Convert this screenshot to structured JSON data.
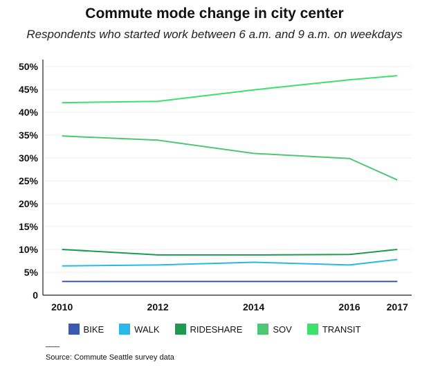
{
  "chart_data": {
    "type": "line",
    "title": "Commute mode change in city center",
    "subtitle": "Respondents who started work between 6 a.m. and 9 a.m. on weekdays",
    "x": [
      "2010",
      "2012",
      "2014",
      "2016",
      "2017"
    ],
    "x_values": [
      2010,
      2012,
      2014,
      2016,
      2017
    ],
    "ylim": [
      0,
      50
    ],
    "yticks": [
      "0",
      "5%",
      "10%",
      "15%",
      "20%",
      "25%",
      "30%",
      "35%",
      "40%",
      "45%",
      "50%"
    ],
    "ytick_values": [
      0,
      5,
      10,
      15,
      20,
      25,
      30,
      35,
      40,
      45,
      50
    ],
    "series": [
      {
        "name": "BIKE",
        "color": "#3a5ab0",
        "values": [
          3.0,
          3.0,
          3.0,
          3.0,
          3.0
        ]
      },
      {
        "name": "WALK",
        "color": "#2ab8e8",
        "values": [
          6.4,
          6.6,
          7.2,
          6.6,
          7.8
        ]
      },
      {
        "name": "RIDESHARE",
        "color": "#1e9a50",
        "values": [
          10.0,
          8.8,
          8.8,
          8.9,
          10.0
        ]
      },
      {
        "name": "SOV",
        "color": "#4cc872",
        "values": [
          34.8,
          33.9,
          31.0,
          29.9,
          25.2
        ]
      },
      {
        "name": "TRANSIT",
        "color": "#3ee06c",
        "values": [
          42.1,
          42.4,
          44.9,
          47.1,
          48.0
        ]
      }
    ],
    "grid": true,
    "legend_position": "bottom"
  },
  "source": "Source: Commute Seattle survey data"
}
